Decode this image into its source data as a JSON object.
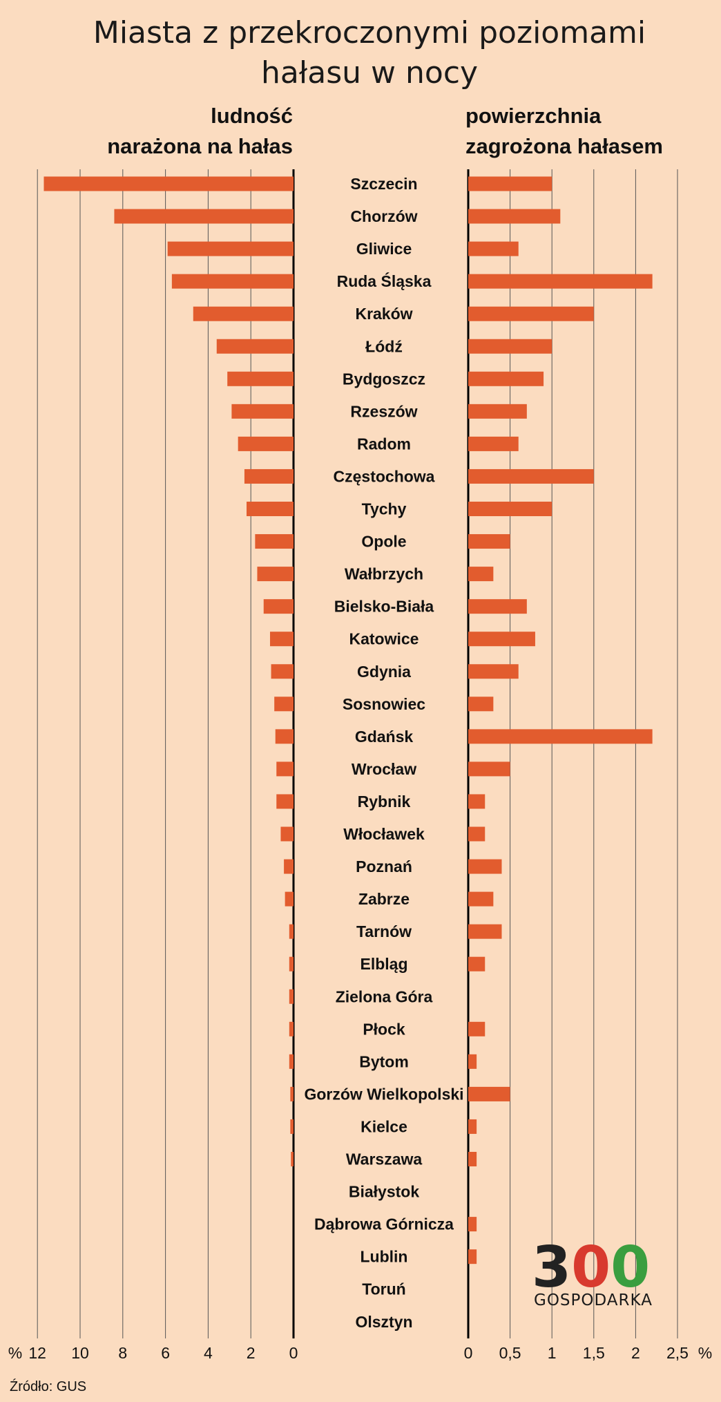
{
  "chart_data": {
    "type": "bar",
    "title_lines": [
      "Miasta z przekroczonymi poziomami",
      "hałasu w nocy"
    ],
    "categories": [
      "Szczecin",
      "Chorzów",
      "Gliwice",
      "Ruda Śląska",
      "Kraków",
      "Łódź",
      "Bydgoszcz",
      "Rzeszów",
      "Radom",
      "Częstochowa",
      "Tychy",
      "Opole",
      "Wałbrzych",
      "Bielsko-Biała",
      "Katowice",
      "Gdynia",
      "Sosnowiec",
      "Gdańsk",
      "Wrocław",
      "Rybnik",
      "Włocławek",
      "Poznań",
      "Zabrze",
      "Tarnów",
      "Elbląg",
      "Zielona Góra",
      "Płock",
      "Bytom",
      "Gorzów Wielkopolski",
      "Kielce",
      "Warszawa",
      "Białystok",
      "Dąbrowa Górnicza",
      "Lublin",
      "Toruń",
      "Olsztyn"
    ],
    "series": [
      {
        "name_lines": [
          "ludność",
          "narażona na hałas"
        ],
        "xlim": [
          0,
          12
        ],
        "ticks": [
          12,
          10,
          8,
          6,
          4,
          2,
          0
        ],
        "tick_labels": [
          "12",
          "10",
          "8",
          "6",
          "4",
          "2",
          "0"
        ],
        "unit": "%",
        "values": [
          11.7,
          8.4,
          5.9,
          5.7,
          4.7,
          3.6,
          3.1,
          2.9,
          2.6,
          2.3,
          2.2,
          1.8,
          1.7,
          1.4,
          1.1,
          1.05,
          0.9,
          0.85,
          0.8,
          0.8,
          0.6,
          0.45,
          0.4,
          0.2,
          0.2,
          0.2,
          0.2,
          0.2,
          0.15,
          0.15,
          0.12,
          0,
          0,
          0,
          0,
          0
        ]
      },
      {
        "name_lines": [
          "powierzchnia",
          "zagrożona hałasem"
        ],
        "xlim": [
          0,
          2.5
        ],
        "ticks": [
          0,
          0.5,
          1,
          1.5,
          2,
          2.5
        ],
        "tick_labels": [
          "0",
          "0,5",
          "1",
          "1,5",
          "2",
          "2,5"
        ],
        "unit": "%",
        "values": [
          1.0,
          1.1,
          0.6,
          2.2,
          1.5,
          1.0,
          0.9,
          0.7,
          0.6,
          1.5,
          1.0,
          0.5,
          0.3,
          0.7,
          0.8,
          0.6,
          0.3,
          2.2,
          0.5,
          0.2,
          0.2,
          0.4,
          0.3,
          0.4,
          0.2,
          0,
          0.2,
          0.1,
          0.5,
          0.1,
          0.1,
          0,
          0.1,
          0.1,
          0,
          0
        ]
      }
    ],
    "bar_color": "#e25c2e",
    "background_color": "#fbdcc0",
    "grid": true
  },
  "source": "Źródło: GUS",
  "logo": {
    "number": "300",
    "text": "GOSPODARKA",
    "colors": [
      "#222222",
      "#d83a2e",
      "#3a9e3f"
    ]
  }
}
